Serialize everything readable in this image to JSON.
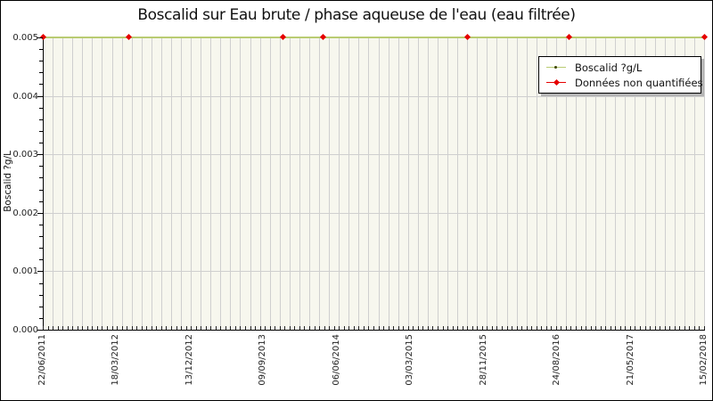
{
  "page": {
    "background": "#ffffff",
    "border_color": "#000000"
  },
  "chart_data": {
    "type": "line",
    "title": "Boscalid sur Eau brute / phase aqueuse de l'eau (eau filtrée)",
    "xlabel": "",
    "ylabel": "Boscalid ?g/L",
    "ylim": [
      0,
      0.005
    ],
    "y_tick_labels": [
      "0.000",
      "0.001",
      "0.002",
      "0.003",
      "0.004",
      "0.005"
    ],
    "x_tick_labels": [
      "22/06/2011",
      "18/03/2012",
      "13/12/2012",
      "09/09/2013",
      "06/06/2014",
      "03/03/2015",
      "28/11/2015",
      "24/08/2016",
      "21/05/2017",
      "15/02/2018"
    ],
    "plot_bg": "#f7f7ee",
    "grid": {
      "color": "#cfcfcf",
      "x_minor_gridlines": 67,
      "x_axis_minor_ticks": 134,
      "y_minor_ticks_per_major": 4
    },
    "series": [
      {
        "name": "Boscalid ?g/L",
        "style": "line+points",
        "color": "#b9cc72",
        "point_color": "#3c4400",
        "constant_value": 0.005,
        "note_visible_shape": "horizontal line at 0.005 across the entire date range"
      },
      {
        "name": "Données non quantifiées",
        "style": "points",
        "marker": "diamond",
        "color": "#e60000",
        "y_value": 0.005,
        "x_fractions": [
          0,
          0.129,
          0.363,
          0.423,
          0.642,
          0.795,
          1
        ]
      }
    ],
    "legend": {
      "position": "top-right",
      "entries": [
        {
          "label": "Boscalid ?g/L"
        },
        {
          "label": "Données non quantifiées"
        }
      ]
    }
  }
}
